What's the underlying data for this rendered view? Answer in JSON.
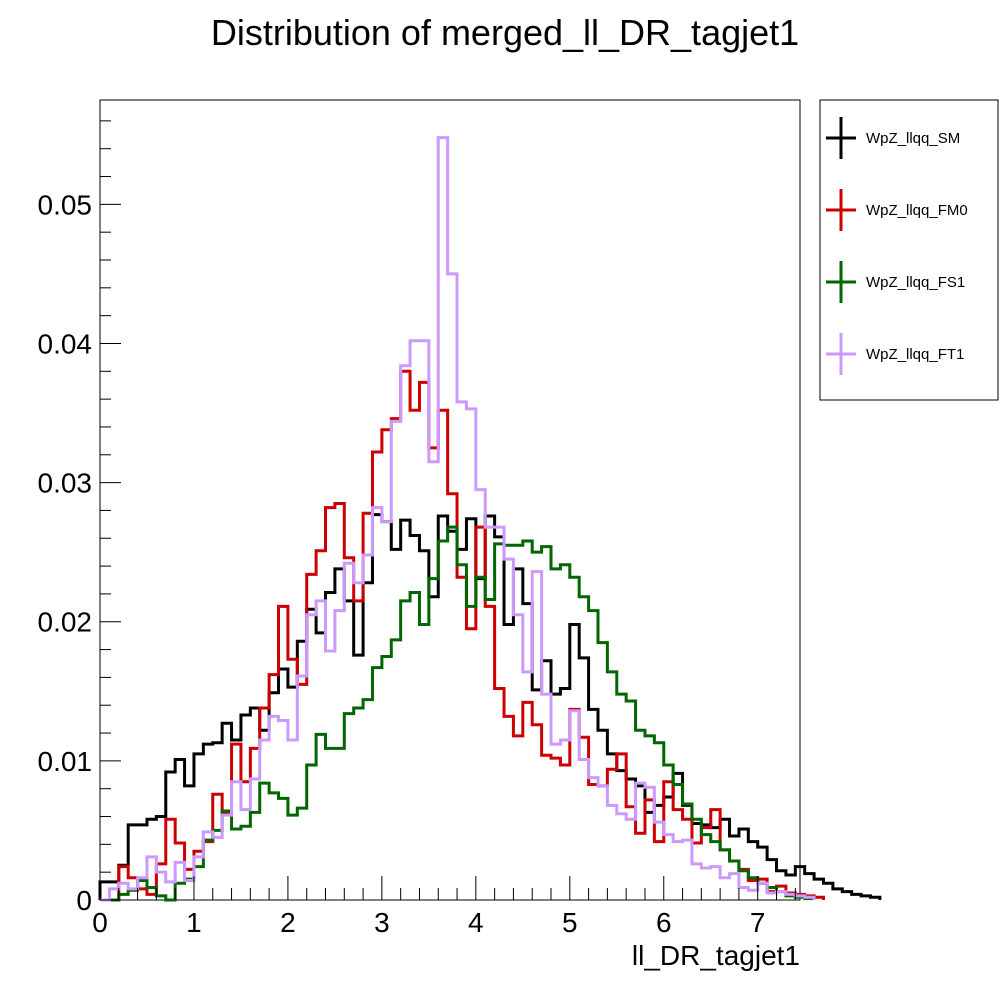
{
  "chart_data": {
    "type": "histogram-step",
    "title": "Distribution of merged_ll_DR_tagjet1",
    "xlabel": "ll_DR_tagjet1",
    "ylabel": "",
    "xlim": [
      0,
      7.45
    ],
    "ylim": [
      0,
      0.0575
    ],
    "bin_width": 0.1,
    "x_ticks": [
      0,
      1,
      2,
      3,
      4,
      5,
      6,
      7
    ],
    "y_ticks": [
      0,
      0.01,
      0.02,
      0.03,
      0.04,
      0.05
    ],
    "x_tick_labels": [
      "0",
      "1",
      "2",
      "3",
      "4",
      "5",
      "6",
      "7"
    ],
    "y_tick_labels": [
      "0",
      "0.01",
      "0.02",
      "0.03",
      "0.04",
      "0.05"
    ],
    "grid": false,
    "legend_position": "right-outside-top",
    "series": [
      {
        "name": "WpZ_llqq_SM",
        "color": "#000000",
        "values": [
          0.0013,
          0.0013,
          0.0025,
          0.0054,
          0.0054,
          0.0058,
          0.006,
          0.0092,
          0.0101,
          0.0082,
          0.0105,
          0.0112,
          0.0113,
          0.0127,
          0.0115,
          0.0133,
          0.0138,
          0.0122,
          0.0149,
          0.0166,
          0.0153,
          0.0186,
          0.0209,
          0.0192,
          0.0221,
          0.0238,
          0.0215,
          0.0176,
          0.0228,
          0.0277,
          0.0272,
          0.0252,
          0.0273,
          0.0262,
          0.0251,
          0.0218,
          0.0276,
          0.0265,
          0.0252,
          0.0274,
          0.0231,
          0.0276,
          0.0261,
          0.0198,
          0.0238,
          0.0213,
          0.0151,
          0.0172,
          0.0148,
          0.0152,
          0.0198,
          0.0174,
          0.0137,
          0.0122,
          0.0105,
          0.0093,
          0.0087,
          0.0082,
          0.0063,
          0.0068,
          0.0074,
          0.0091,
          0.0068,
          0.0055,
          0.0054,
          0.0052,
          0.0058,
          0.0046,
          0.0051,
          0.0042,
          0.0038,
          0.0029,
          0.0021,
          0.0018,
          0.0024,
          0.0019,
          0.0015,
          0.0012,
          0.0008,
          0.0006,
          0.0004,
          0.0003,
          0.0002
        ]
      },
      {
        "name": "WpZ_llqq_FM0",
        "color": "#cc0000",
        "values": [
          0.0,
          0.0,
          0.0024,
          0.0016,
          0.0008,
          0.0004,
          0.0026,
          0.0058,
          0.0041,
          0.0022,
          0.0035,
          0.0042,
          0.0076,
          0.0062,
          0.0112,
          0.0085,
          0.0109,
          0.0138,
          0.0162,
          0.0211,
          0.0173,
          0.0155,
          0.0234,
          0.0251,
          0.0282,
          0.0285,
          0.0246,
          0.0215,
          0.0278,
          0.0322,
          0.0338,
          0.0346,
          0.038,
          0.0352,
          0.0372,
          0.0325,
          0.0352,
          0.0292,
          0.0232,
          0.0195,
          0.0268,
          0.0211,
          0.0152,
          0.0132,
          0.0118,
          0.0142,
          0.0126,
          0.0104,
          0.0102,
          0.0097,
          0.0137,
          0.0117,
          0.0083,
          0.0082,
          0.0094,
          0.0105,
          0.0067,
          0.0048,
          0.0072,
          0.0042,
          0.0085,
          0.0065,
          0.0058,
          0.0041,
          0.0052,
          0.0065,
          0.0036,
          0.0028,
          0.0022,
          0.0014,
          0.0015,
          0.0006,
          0.001,
          0.0005,
          0.0004,
          0.0003,
          0.0002
        ]
      },
      {
        "name": "WpZ_llqq_FS1",
        "color": "#006600",
        "values": [
          0.0,
          0.0,
          0.0004,
          0.0007,
          0.0014,
          0.0009,
          0.0003,
          0.0,
          0.0012,
          0.0015,
          0.0024,
          0.0043,
          0.005,
          0.0064,
          0.0051,
          0.0053,
          0.0063,
          0.0084,
          0.0077,
          0.0073,
          0.0061,
          0.0066,
          0.0097,
          0.0119,
          0.0109,
          0.0109,
          0.0134,
          0.0138,
          0.0144,
          0.0167,
          0.0175,
          0.0187,
          0.0215,
          0.0221,
          0.0198,
          0.0231,
          0.0258,
          0.0268,
          0.0241,
          0.0211,
          0.0232,
          0.0216,
          0.0256,
          0.0255,
          0.0255,
          0.0258,
          0.025,
          0.0254,
          0.0238,
          0.0241,
          0.0232,
          0.0218,
          0.0208,
          0.0185,
          0.0164,
          0.0148,
          0.0143,
          0.0122,
          0.0118,
          0.0113,
          0.0097,
          0.0083,
          0.0069,
          0.0058,
          0.0047,
          0.0042,
          0.0036,
          0.0028,
          0.0021,
          0.0016,
          0.0012,
          0.0009,
          0.0006,
          0.0003,
          0.0002,
          0.0001
        ]
      },
      {
        "name": "WpZ_llqq_FT1",
        "color": "#cc99ff",
        "values": [
          0.0,
          0.0008,
          0.0012,
          0.0008,
          0.0016,
          0.0031,
          0.002,
          0.0013,
          0.0027,
          0.0014,
          0.0031,
          0.0049,
          0.0045,
          0.0061,
          0.0085,
          0.0065,
          0.0087,
          0.0115,
          0.0132,
          0.0129,
          0.0115,
          0.0161,
          0.0205,
          0.0215,
          0.0179,
          0.0208,
          0.0242,
          0.0228,
          0.0248,
          0.0282,
          0.0272,
          0.0344,
          0.0384,
          0.0402,
          0.0402,
          0.0315,
          0.0548,
          0.045,
          0.0358,
          0.0353,
          0.0295,
          0.0268,
          0.0268,
          0.0245,
          0.0205,
          0.0164,
          0.0236,
          0.0148,
          0.0112,
          0.0115,
          0.0136,
          0.0101,
          0.0088,
          0.0082,
          0.0068,
          0.0062,
          0.0058,
          0.0084,
          0.0081,
          0.0056,
          0.0047,
          0.0042,
          0.0043,
          0.0026,
          0.0023,
          0.0024,
          0.0016,
          0.0019,
          0.0009,
          0.0007,
          0.0012,
          0.0005,
          0.0006,
          0.0004,
          0.0003,
          0.0002
        ]
      }
    ]
  }
}
